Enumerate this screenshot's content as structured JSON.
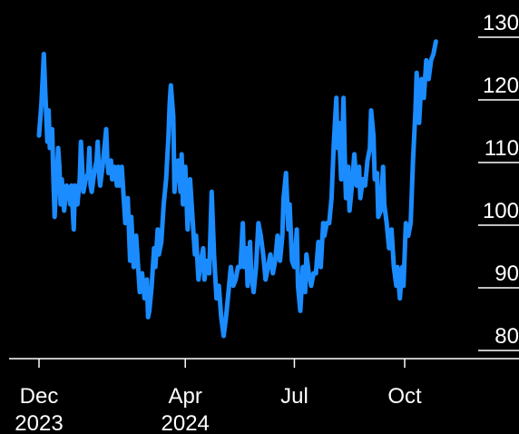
{
  "chart_data": {
    "type": "line",
    "title": "",
    "xlabel": "",
    "ylabel": "",
    "ylim": [
      78,
      130
    ],
    "yticks": [
      80,
      90,
      100,
      110,
      120,
      130
    ],
    "xticks": [
      {
        "date": "2023-12-01",
        "line1": "Dec",
        "line2": "2023"
      },
      {
        "date": "2024-04-01",
        "line1": "Apr",
        "line2": "2024"
      },
      {
        "date": "2024-07-01",
        "line1": "Jul",
        "line2": ""
      },
      {
        "date": "2024-10-01",
        "line1": "Oct",
        "line2": ""
      }
    ],
    "grid": "horizontal",
    "legend": "none",
    "series": [
      {
        "color": "#1a8cff",
        "points": [
          [
            "2023-12-01",
            112
          ],
          [
            "2023-12-03",
            117
          ],
          [
            "2023-12-04",
            121
          ],
          [
            "2023-12-05",
            125
          ],
          [
            "2023-12-06",
            120
          ],
          [
            "2023-12-08",
            111
          ],
          [
            "2023-12-09",
            116
          ],
          [
            "2023-12-10",
            110
          ],
          [
            "2023-12-12",
            113
          ],
          [
            "2023-12-13",
            105
          ],
          [
            "2023-12-14",
            99
          ],
          [
            "2023-12-15",
            103
          ],
          [
            "2023-12-16",
            106
          ],
          [
            "2023-12-17",
            110
          ],
          [
            "2023-12-18",
            107
          ],
          [
            "2023-12-19",
            101
          ],
          [
            "2023-12-20",
            105
          ],
          [
            "2023-12-22",
            100
          ],
          [
            "2023-12-24",
            104
          ],
          [
            "2023-12-26",
            103
          ],
          [
            "2023-12-27",
            101
          ],
          [
            "2023-12-28",
            104
          ],
          [
            "2023-12-30",
            97
          ],
          [
            "2023-12-31",
            104
          ],
          [
            "2024-01-02",
            101
          ],
          [
            "2024-01-04",
            105
          ],
          [
            "2024-01-05",
            111
          ],
          [
            "2024-01-06",
            107
          ],
          [
            "2024-01-07",
            103
          ],
          [
            "2024-01-09",
            105
          ],
          [
            "2024-01-11",
            106
          ],
          [
            "2024-01-12",
            110
          ],
          [
            "2024-01-13",
            104
          ],
          [
            "2024-01-14",
            103
          ],
          [
            "2024-01-16",
            106
          ],
          [
            "2024-01-18",
            108
          ],
          [
            "2024-01-19",
            111
          ],
          [
            "2024-01-20",
            106
          ],
          [
            "2024-01-21",
            104
          ],
          [
            "2024-01-23",
            107
          ],
          [
            "2024-01-25",
            111
          ],
          [
            "2024-01-26",
            113
          ],
          [
            "2024-01-27",
            108
          ],
          [
            "2024-01-28",
            106
          ],
          [
            "2024-01-30",
            108
          ],
          [
            "2024-01-31",
            105
          ],
          [
            "2024-02-02",
            107
          ],
          [
            "2024-02-04",
            104
          ],
          [
            "2024-02-05",
            107
          ],
          [
            "2024-02-06",
            104
          ],
          [
            "2024-02-08",
            107
          ],
          [
            "2024-02-10",
            101
          ],
          [
            "2024-02-11",
            98
          ],
          [
            "2024-02-13",
            102
          ],
          [
            "2024-02-15",
            92
          ],
          [
            "2024-02-16",
            99
          ],
          [
            "2024-02-18",
            91
          ],
          [
            "2024-02-20",
            96
          ],
          [
            "2024-02-22",
            90
          ],
          [
            "2024-02-23",
            87
          ],
          [
            "2024-02-25",
            90
          ],
          [
            "2024-02-27",
            86
          ],
          [
            "2024-02-29",
            89
          ],
          [
            "2024-03-01",
            83
          ],
          [
            "2024-03-02",
            84
          ],
          [
            "2024-03-04",
            88
          ],
          [
            "2024-03-06",
            94
          ],
          [
            "2024-03-07",
            91
          ],
          [
            "2024-03-09",
            97
          ],
          [
            "2024-03-10",
            93
          ],
          [
            "2024-03-12",
            95
          ],
          [
            "2024-03-14",
            101
          ],
          [
            "2024-03-16",
            105
          ],
          [
            "2024-03-18",
            112
          ],
          [
            "2024-03-19",
            117
          ],
          [
            "2024-03-20",
            120
          ],
          [
            "2024-03-22",
            115
          ],
          [
            "2024-03-23",
            103
          ],
          [
            "2024-03-24",
            106
          ],
          [
            "2024-03-26",
            108
          ],
          [
            "2024-03-28",
            103
          ],
          [
            "2024-03-29",
            109
          ],
          [
            "2024-03-30",
            101
          ],
          [
            "2024-04-01",
            107
          ],
          [
            "2024-04-03",
            97
          ],
          [
            "2024-04-05",
            105
          ],
          [
            "2024-04-07",
            99
          ],
          [
            "2024-04-09",
            93
          ],
          [
            "2024-04-10",
            96
          ],
          [
            "2024-04-12",
            89
          ],
          [
            "2024-04-14",
            92
          ],
          [
            "2024-04-16",
            94
          ],
          [
            "2024-04-17",
            89
          ],
          [
            "2024-04-19",
            92
          ],
          [
            "2024-04-21",
            90
          ],
          [
            "2024-04-23",
            103
          ],
          [
            "2024-04-25",
            93
          ],
          [
            "2024-04-27",
            86
          ],
          [
            "2024-04-29",
            88
          ],
          [
            "2024-05-01",
            83
          ],
          [
            "2024-05-03",
            80
          ],
          [
            "2024-05-05",
            83
          ],
          [
            "2024-05-07",
            87
          ],
          [
            "2024-05-09",
            91
          ],
          [
            "2024-05-11",
            88
          ],
          [
            "2024-05-13",
            89
          ],
          [
            "2024-05-15",
            91
          ],
          [
            "2024-05-17",
            91
          ],
          [
            "2024-05-19",
            98
          ],
          [
            "2024-05-20",
            91
          ],
          [
            "2024-05-22",
            94
          ],
          [
            "2024-05-23",
            88
          ],
          [
            "2024-05-25",
            95
          ],
          [
            "2024-05-26",
            90
          ],
          [
            "2024-05-28",
            87
          ],
          [
            "2024-05-30",
            91
          ],
          [
            "2024-06-01",
            98
          ],
          [
            "2024-06-03",
            96
          ],
          [
            "2024-06-05",
            93
          ],
          [
            "2024-06-07",
            89
          ],
          [
            "2024-06-09",
            91
          ],
          [
            "2024-06-11",
            93
          ],
          [
            "2024-06-13",
            90
          ],
          [
            "2024-06-15",
            92
          ],
          [
            "2024-06-17",
            96
          ],
          [
            "2024-06-19",
            92
          ],
          [
            "2024-06-21",
            96
          ],
          [
            "2024-06-22",
            102
          ],
          [
            "2024-06-24",
            106
          ],
          [
            "2024-06-26",
            97
          ],
          [
            "2024-06-27",
            101
          ],
          [
            "2024-06-29",
            92
          ],
          [
            "2024-07-01",
            91
          ],
          [
            "2024-07-03",
            97
          ],
          [
            "2024-07-04",
            88
          ],
          [
            "2024-07-06",
            84
          ],
          [
            "2024-07-08",
            91
          ],
          [
            "2024-07-10",
            87
          ],
          [
            "2024-07-11",
            93
          ],
          [
            "2024-07-13",
            90
          ],
          [
            "2024-07-15",
            88
          ],
          [
            "2024-07-17",
            90
          ],
          [
            "2024-07-19",
            90
          ],
          [
            "2024-07-21",
            95
          ],
          [
            "2024-07-23",
            91
          ],
          [
            "2024-07-25",
            98
          ],
          [
            "2024-07-26",
            96
          ],
          [
            "2024-07-28",
            98
          ],
          [
            "2024-07-30",
            98
          ],
          [
            "2024-08-01",
            102
          ],
          [
            "2024-08-03",
            111
          ],
          [
            "2024-08-05",
            118
          ],
          [
            "2024-08-06",
            110
          ],
          [
            "2024-08-07",
            114
          ],
          [
            "2024-08-09",
            105
          ],
          [
            "2024-08-11",
            118
          ],
          [
            "2024-08-12",
            109
          ],
          [
            "2024-08-13",
            102
          ],
          [
            "2024-08-15",
            107
          ],
          [
            "2024-08-16",
            100
          ],
          [
            "2024-08-18",
            104
          ],
          [
            "2024-08-20",
            109
          ],
          [
            "2024-08-22",
            104
          ],
          [
            "2024-08-24",
            107
          ],
          [
            "2024-08-25",
            102
          ],
          [
            "2024-08-27",
            105
          ],
          [
            "2024-08-29",
            104
          ],
          [
            "2024-08-31",
            108
          ],
          [
            "2024-09-02",
            110
          ],
          [
            "2024-09-03",
            116
          ],
          [
            "2024-09-05",
            112
          ],
          [
            "2024-09-06",
            105
          ],
          [
            "2024-09-08",
            106
          ],
          [
            "2024-09-09",
            99
          ],
          [
            "2024-09-11",
            100
          ],
          [
            "2024-09-13",
            107
          ],
          [
            "2024-09-14",
            101
          ],
          [
            "2024-09-16",
            98
          ],
          [
            "2024-09-18",
            94
          ],
          [
            "2024-09-20",
            97
          ],
          [
            "2024-09-22",
            91
          ],
          [
            "2024-09-24",
            88
          ],
          [
            "2024-09-25",
            91
          ],
          [
            "2024-09-27",
            86
          ],
          [
            "2024-09-29",
            91
          ],
          [
            "2024-09-30",
            88
          ],
          [
            "2024-10-02",
            98
          ],
          [
            "2024-10-04",
            96
          ],
          [
            "2024-10-06",
            98
          ],
          [
            "2024-10-08",
            108
          ],
          [
            "2024-10-10",
            116
          ],
          [
            "2024-10-11",
            122
          ],
          [
            "2024-10-13",
            114
          ],
          [
            "2024-10-15",
            121
          ],
          [
            "2024-10-17",
            118
          ],
          [
            "2024-10-19",
            124
          ],
          [
            "2024-10-21",
            121
          ],
          [
            "2024-10-23",
            124
          ],
          [
            "2024-10-25",
            125
          ],
          [
            "2024-10-27",
            127
          ]
        ]
      }
    ]
  }
}
